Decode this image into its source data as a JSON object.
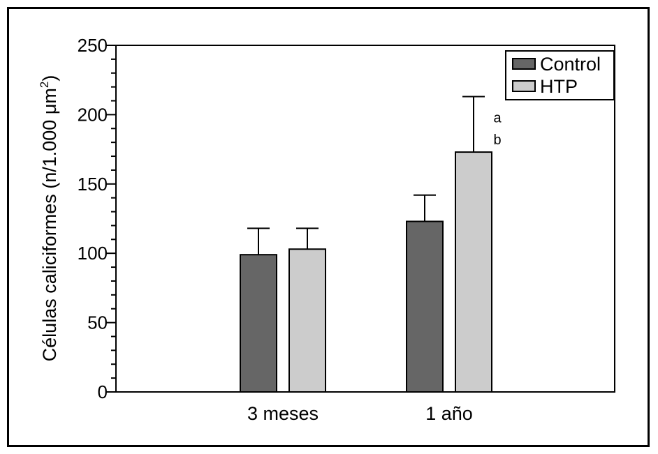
{
  "chart_data": {
    "type": "bar",
    "title": "",
    "xlabel": "",
    "ylabel": "Células caliciformes (n/1.000 μm",
    "ylabel_superscript": "2",
    "ylabel_close": ")",
    "ylim": [
      0,
      250
    ],
    "yticks": [
      0,
      50,
      100,
      150,
      200,
      250
    ],
    "ytick_labels": [
      "0",
      "50",
      "100",
      "150",
      "200",
      "250"
    ],
    "minor_tick_step": 10,
    "categories": [
      "3 meses",
      "1 año"
    ],
    "series": [
      {
        "name": "Control",
        "color": "#666666",
        "values": [
          99,
          123
        ],
        "error_upper": [
          118,
          142
        ]
      },
      {
        "name": "HTP",
        "color": "#cccccc",
        "values": [
          103,
          173
        ],
        "error_upper": [
          118,
          213
        ]
      }
    ],
    "annotations": [
      {
        "text": "a",
        "category": "1 año",
        "series": "HTP",
        "y": 198
      },
      {
        "text": "b",
        "category": "1 año",
        "series": "HTP",
        "y": 182
      }
    ],
    "legend_position": "top-right",
    "grid": false
  }
}
